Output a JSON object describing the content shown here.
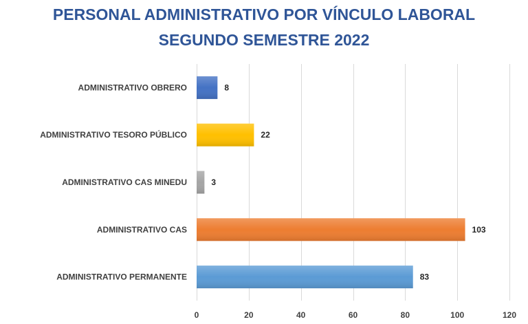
{
  "chart_data": {
    "type": "bar",
    "orientation": "horizontal",
    "title": "PERSONAL ADMINISTRATIVO POR VÍNCULO LABORAL",
    "subtitle": "SEGUNDO SEMESTRE 2022",
    "categories": [
      "ADMINISTRATIVO OBRERO",
      "ADMINISTRATIVO TESORO PÚBLICO",
      "ADMINISTRATIVO CAS MINEDU",
      "ADMINISTRATIVO CAS",
      "ADMINISTRATIVO PERMANENTE"
    ],
    "values": [
      8,
      22,
      3,
      103,
      83
    ],
    "colors": [
      "#4472c4",
      "#ffc000",
      "#a5a5a5",
      "#ed7d31",
      "#5b9bd5"
    ],
    "xlim": [
      0,
      120
    ],
    "xticks": [
      0,
      20,
      40,
      60,
      80,
      100,
      120
    ],
    "grid": true,
    "legend": "none",
    "data_labels": true
  }
}
